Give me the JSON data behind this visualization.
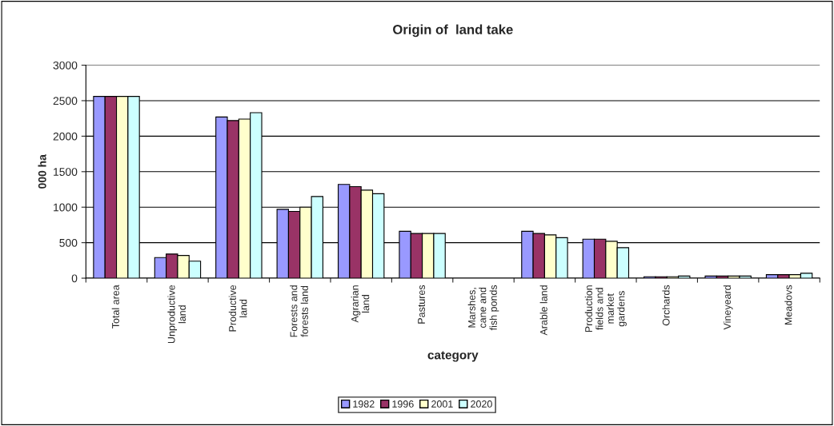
{
  "chart_data": {
    "type": "bar",
    "title": "Origin of  land take",
    "xlabel": "category",
    "ylabel": "000 ha",
    "categories": [
      "Total area",
      "Unproductive\nland",
      "Productive\nland",
      "Forests and\nforests land",
      "Agrarian\nland",
      "Pastures",
      "Marshes,\ncane and\nfish ponds",
      "Arable land",
      "Production\nfields and\nmarket\ngardens",
      "Orchards",
      "Vineyeard",
      "Meadovs"
    ],
    "series": [
      {
        "name": "1982",
        "color": "#9999ff",
        "values": [
          2560,
          290,
          2270,
          970,
          1320,
          660,
          null,
          660,
          550,
          20,
          30,
          50
        ]
      },
      {
        "name": "1996",
        "color": "#993366",
        "values": [
          2560,
          340,
          2220,
          940,
          1290,
          630,
          null,
          630,
          550,
          20,
          30,
          50
        ]
      },
      {
        "name": "2001",
        "color": "#ffffcc",
        "values": [
          2560,
          320,
          2240,
          1000,
          1240,
          630,
          null,
          610,
          520,
          20,
          30,
          50
        ]
      },
      {
        "name": "2020",
        "color": "#ccffff",
        "values": [
          2560,
          240,
          2330,
          1150,
          1190,
          630,
          null,
          570,
          430,
          30,
          30,
          70
        ]
      }
    ],
    "ylim": [
      0,
      3000
    ],
    "yticks": [
      0,
      500,
      1000,
      1500,
      2000,
      2500,
      3000
    ],
    "grid": "y",
    "legend": "bottom"
  }
}
